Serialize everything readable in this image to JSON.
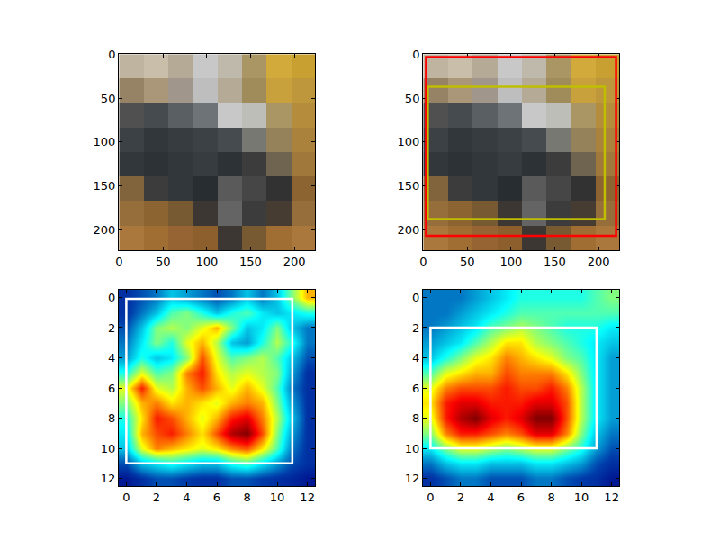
{
  "chart_data": [
    {
      "type": "image",
      "xlim": [
        -0.5,
        223.5
      ],
      "ylim": [
        223.5,
        -0.5
      ],
      "xticks": [
        0,
        50,
        100,
        150,
        200
      ],
      "yticks": [
        0,
        50,
        100,
        150,
        200
      ],
      "pixel_size": 28,
      "image": [
        [
          [
            190,
            180,
            160
          ],
          [
            200,
            190,
            170
          ],
          [
            180,
            170,
            150
          ],
          [
            200,
            200,
            200
          ],
          [
            190,
            185,
            170
          ],
          [
            170,
            150,
            100
          ],
          [
            210,
            170,
            60
          ],
          [
            200,
            160,
            50
          ]
        ],
        [
          [
            150,
            130,
            100
          ],
          [
            170,
            150,
            120
          ],
          [
            160,
            150,
            140
          ],
          [
            190,
            190,
            190
          ],
          [
            180,
            170,
            150
          ],
          [
            160,
            140,
            90
          ],
          [
            200,
            160,
            60
          ],
          [
            190,
            150,
            60
          ]
        ],
        [
          [
            80,
            80,
            80
          ],
          [
            70,
            75,
            80
          ],
          [
            90,
            95,
            100
          ],
          [
            110,
            115,
            120
          ],
          [
            200,
            200,
            200
          ],
          [
            190,
            190,
            185
          ],
          [
            170,
            150,
            100
          ],
          [
            180,
            140,
            60
          ]
        ],
        [
          [
            60,
            65,
            70
          ],
          [
            50,
            55,
            60
          ],
          [
            55,
            60,
            65
          ],
          [
            60,
            65,
            70
          ],
          [
            70,
            75,
            80
          ],
          [
            120,
            120,
            115
          ],
          [
            150,
            130,
            90
          ],
          [
            170,
            130,
            60
          ]
        ],
        [
          [
            50,
            55,
            60
          ],
          [
            45,
            50,
            55
          ],
          [
            50,
            55,
            60
          ],
          [
            55,
            60,
            65
          ],
          [
            45,
            50,
            55
          ],
          [
            60,
            60,
            60
          ],
          [
            110,
            100,
            80
          ],
          [
            160,
            120,
            60
          ]
        ],
        [
          [
            130,
            100,
            60
          ],
          [
            60,
            60,
            60
          ],
          [
            50,
            55,
            60
          ],
          [
            40,
            45,
            50
          ],
          [
            90,
            90,
            90
          ],
          [
            70,
            70,
            70
          ],
          [
            50,
            50,
            50
          ],
          [
            140,
            100,
            50
          ]
        ],
        [
          [
            150,
            110,
            60
          ],
          [
            140,
            100,
            50
          ],
          [
            120,
            90,
            50
          ],
          [
            60,
            55,
            50
          ],
          [
            100,
            100,
            100
          ],
          [
            60,
            60,
            60
          ],
          [
            70,
            60,
            50
          ],
          [
            150,
            110,
            60
          ]
        ],
        [
          [
            170,
            120,
            60
          ],
          [
            160,
            110,
            50
          ],
          [
            150,
            100,
            50
          ],
          [
            140,
            95,
            45
          ],
          [
            60,
            55,
            50
          ],
          [
            120,
            90,
            50
          ],
          [
            160,
            110,
            50
          ],
          [
            170,
            120,
            60
          ]
        ]
      ],
      "boxes": []
    },
    {
      "type": "image",
      "xlim": [
        -0.5,
        223.5
      ],
      "ylim": [
        223.5,
        -0.5
      ],
      "xticks": [
        0,
        50,
        100,
        150,
        200
      ],
      "yticks": [
        0,
        50,
        100,
        150,
        200
      ],
      "pixel_size": 28,
      "image": [
        [
          [
            190,
            180,
            160
          ],
          [
            200,
            190,
            170
          ],
          [
            180,
            170,
            150
          ],
          [
            200,
            200,
            200
          ],
          [
            190,
            185,
            170
          ],
          [
            170,
            150,
            100
          ],
          [
            210,
            170,
            60
          ],
          [
            200,
            160,
            50
          ]
        ],
        [
          [
            150,
            130,
            100
          ],
          [
            170,
            150,
            120
          ],
          [
            160,
            150,
            140
          ],
          [
            190,
            190,
            190
          ],
          [
            180,
            170,
            150
          ],
          [
            160,
            140,
            90
          ],
          [
            200,
            160,
            60
          ],
          [
            190,
            150,
            60
          ]
        ],
        [
          [
            80,
            80,
            80
          ],
          [
            70,
            75,
            80
          ],
          [
            90,
            95,
            100
          ],
          [
            110,
            115,
            120
          ],
          [
            200,
            200,
            200
          ],
          [
            190,
            190,
            185
          ],
          [
            170,
            150,
            100
          ],
          [
            180,
            140,
            60
          ]
        ],
        [
          [
            60,
            65,
            70
          ],
          [
            50,
            55,
            60
          ],
          [
            55,
            60,
            65
          ],
          [
            60,
            65,
            70
          ],
          [
            70,
            75,
            80
          ],
          [
            120,
            120,
            115
          ],
          [
            150,
            130,
            90
          ],
          [
            170,
            130,
            60
          ]
        ],
        [
          [
            50,
            55,
            60
          ],
          [
            45,
            50,
            55
          ],
          [
            50,
            55,
            60
          ],
          [
            55,
            60,
            65
          ],
          [
            45,
            50,
            55
          ],
          [
            60,
            60,
            60
          ],
          [
            110,
            100,
            80
          ],
          [
            160,
            120,
            60
          ]
        ],
        [
          [
            130,
            100,
            60
          ],
          [
            60,
            60,
            60
          ],
          [
            50,
            55,
            60
          ],
          [
            40,
            45,
            50
          ],
          [
            90,
            90,
            90
          ],
          [
            70,
            70,
            70
          ],
          [
            50,
            50,
            50
          ],
          [
            140,
            100,
            50
          ]
        ],
        [
          [
            150,
            110,
            60
          ],
          [
            140,
            100,
            50
          ],
          [
            120,
            90,
            50
          ],
          [
            60,
            55,
            50
          ],
          [
            100,
            100,
            100
          ],
          [
            60,
            60,
            60
          ],
          [
            70,
            60,
            50
          ],
          [
            150,
            110,
            60
          ]
        ],
        [
          [
            170,
            120,
            60
          ],
          [
            160,
            110,
            50
          ],
          [
            150,
            100,
            50
          ],
          [
            140,
            95,
            45
          ],
          [
            60,
            55,
            50
          ],
          [
            120,
            90,
            50
          ],
          [
            160,
            110,
            50
          ],
          [
            170,
            120,
            60
          ]
        ]
      ],
      "boxes": [
        {
          "x0": 3,
          "y0": 3,
          "x1": 220,
          "y1": 207,
          "color": "#ff0000"
        },
        {
          "x0": 5,
          "y0": 37,
          "x1": 207,
          "y1": 188,
          "color": "#bfbf00"
        }
      ]
    },
    {
      "type": "heatmap",
      "xlim": [
        -0.5,
        12.5
      ],
      "ylim": [
        12.5,
        -0.5
      ],
      "xticks": [
        0,
        2,
        4,
        6,
        8,
        10,
        12
      ],
      "yticks": [
        0,
        2,
        4,
        6,
        8,
        10,
        12
      ],
      "zlim": [
        0,
        1
      ],
      "cells": [
        [
          0.1,
          0.15,
          0.2,
          0.3,
          0.25,
          0.2,
          0.15,
          0.2,
          0.3,
          0.2,
          0.3,
          0.5,
          0.7
        ],
        [
          0.1,
          0.2,
          0.3,
          0.45,
          0.5,
          0.4,
          0.3,
          0.4,
          0.45,
          0.35,
          0.3,
          0.35,
          0.4
        ],
        [
          0.15,
          0.3,
          0.5,
          0.55,
          0.5,
          0.6,
          0.7,
          0.5,
          0.3,
          0.35,
          0.5,
          0.3,
          0.2
        ],
        [
          0.2,
          0.35,
          0.5,
          0.4,
          0.6,
          0.7,
          0.55,
          0.3,
          0.25,
          0.4,
          0.55,
          0.4,
          0.2
        ],
        [
          0.25,
          0.4,
          0.3,
          0.35,
          0.5,
          0.8,
          0.6,
          0.45,
          0.5,
          0.55,
          0.45,
          0.3,
          0.15
        ],
        [
          0.4,
          0.6,
          0.45,
          0.5,
          0.75,
          0.85,
          0.65,
          0.55,
          0.6,
          0.55,
          0.5,
          0.25,
          0.1
        ],
        [
          0.6,
          0.85,
          0.6,
          0.55,
          0.7,
          0.8,
          0.7,
          0.6,
          0.7,
          0.6,
          0.45,
          0.2,
          0.1
        ],
        [
          0.5,
          0.7,
          0.75,
          0.65,
          0.7,
          0.65,
          0.6,
          0.7,
          0.75,
          0.7,
          0.5,
          0.25,
          0.1
        ],
        [
          0.4,
          0.65,
          0.85,
          0.8,
          0.7,
          0.6,
          0.7,
          0.85,
          0.9,
          0.75,
          0.55,
          0.3,
          0.1
        ],
        [
          0.35,
          0.7,
          0.8,
          0.85,
          0.75,
          0.65,
          0.8,
          0.95,
          1.0,
          0.8,
          0.5,
          0.25,
          0.1
        ],
        [
          0.3,
          0.6,
          0.75,
          0.7,
          0.65,
          0.6,
          0.65,
          0.75,
          0.8,
          0.65,
          0.45,
          0.2,
          0.1
        ],
        [
          0.15,
          0.3,
          0.35,
          0.4,
          0.35,
          0.3,
          0.3,
          0.4,
          0.45,
          0.35,
          0.25,
          0.15,
          0.1
        ],
        [
          0.05,
          0.1,
          0.15,
          0.15,
          0.12,
          0.1,
          0.1,
          0.15,
          0.15,
          0.12,
          0.1,
          0.08,
          0.05
        ]
      ],
      "boxes": [
        {
          "x0": 0,
          "y0": 0.1,
          "x1": 11,
          "y1": 11,
          "color": "#ffffff"
        }
      ]
    },
    {
      "type": "heatmap",
      "xlim": [
        -0.5,
        12.5
      ],
      "ylim": [
        12.5,
        -0.5
      ],
      "xticks": [
        0,
        2,
        4,
        6,
        8,
        10,
        12
      ],
      "yticks": [
        0,
        2,
        4,
        6,
        8,
        10,
        12
      ],
      "zlim": [
        0,
        1
      ],
      "cells": [
        [
          0.2,
          0.2,
          0.2,
          0.25,
          0.3,
          0.35,
          0.4,
          0.4,
          0.4,
          0.4,
          0.4,
          0.45,
          0.5
        ],
        [
          0.2,
          0.2,
          0.25,
          0.3,
          0.35,
          0.4,
          0.45,
          0.45,
          0.45,
          0.45,
          0.45,
          0.45,
          0.45
        ],
        [
          0.2,
          0.25,
          0.3,
          0.35,
          0.45,
          0.5,
          0.55,
          0.5,
          0.45,
          0.4,
          0.4,
          0.4,
          0.35
        ],
        [
          0.25,
          0.3,
          0.35,
          0.45,
          0.55,
          0.65,
          0.65,
          0.55,
          0.5,
          0.45,
          0.4,
          0.35,
          0.3
        ],
        [
          0.3,
          0.4,
          0.5,
          0.6,
          0.65,
          0.75,
          0.7,
          0.65,
          0.6,
          0.5,
          0.45,
          0.35,
          0.25
        ],
        [
          0.45,
          0.6,
          0.65,
          0.7,
          0.7,
          0.8,
          0.75,
          0.75,
          0.75,
          0.65,
          0.5,
          0.35,
          0.25
        ],
        [
          0.6,
          0.75,
          0.8,
          0.8,
          0.8,
          0.85,
          0.8,
          0.8,
          0.85,
          0.75,
          0.55,
          0.35,
          0.25
        ],
        [
          0.65,
          0.85,
          0.9,
          0.9,
          0.85,
          0.85,
          0.85,
          0.9,
          0.9,
          0.8,
          0.55,
          0.35,
          0.25
        ],
        [
          0.6,
          0.85,
          0.95,
          1.0,
          0.9,
          0.85,
          0.9,
          1.0,
          1.0,
          0.8,
          0.55,
          0.35,
          0.25
        ],
        [
          0.5,
          0.75,
          0.85,
          0.85,
          0.8,
          0.75,
          0.8,
          0.9,
          0.9,
          0.75,
          0.5,
          0.3,
          0.2
        ],
        [
          0.35,
          0.5,
          0.6,
          0.6,
          0.55,
          0.5,
          0.55,
          0.6,
          0.6,
          0.5,
          0.4,
          0.25,
          0.15
        ],
        [
          0.2,
          0.3,
          0.35,
          0.35,
          0.3,
          0.3,
          0.3,
          0.35,
          0.35,
          0.3,
          0.25,
          0.15,
          0.1
        ],
        [
          0.1,
          0.15,
          0.2,
          0.2,
          0.15,
          0.15,
          0.15,
          0.2,
          0.2,
          0.15,
          0.12,
          0.1,
          0.05
        ]
      ],
      "boxes": [
        {
          "x0": 0,
          "y0": 2,
          "x1": 11,
          "y1": 10,
          "color": "#ffffff"
        }
      ]
    }
  ]
}
